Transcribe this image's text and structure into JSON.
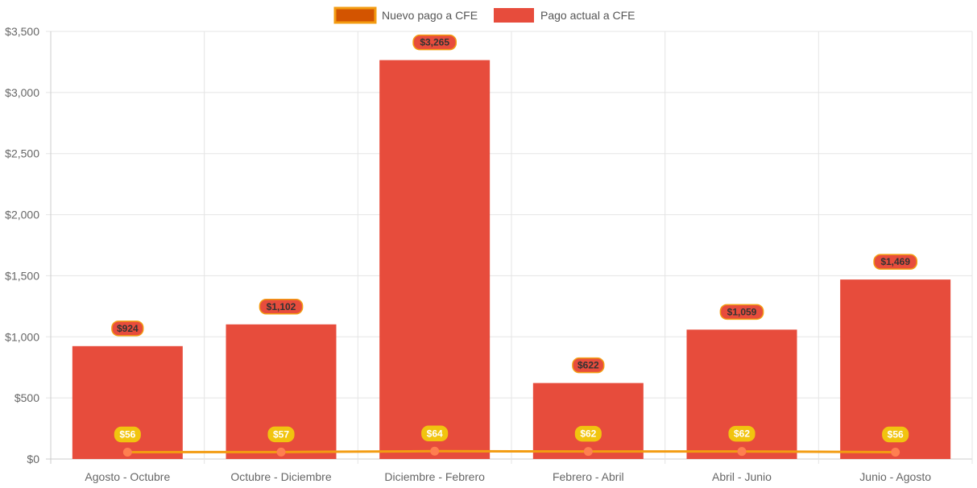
{
  "colors": {
    "bar_fill": "#e74c3c",
    "line_stroke": "#f39c12",
    "line_point": "#ff7f50",
    "legend_line_fill": "#d35400",
    "grid": "#e5e5e5",
    "axis": "#cccccc",
    "bar_label_bg": "#e74c3c",
    "bar_label_border": "#f39c12",
    "bar_label_text": "#333333",
    "line_label_bg": "#f1c40f",
    "line_label_text": "#ffffff"
  },
  "chart_data": {
    "type": "bar",
    "categories": [
      "Agosto - Octubre",
      "Octubre - Diciembre",
      "Diciembre - Febrero",
      "Febrero - Abril",
      "Abril - Junio",
      "Junio - Agosto"
    ],
    "series": [
      {
        "name": "Nuevo pago a CFE",
        "type": "line",
        "values": [
          56,
          57,
          64,
          62,
          62,
          56
        ],
        "labels": [
          "$56",
          "$57",
          "$64",
          "$62",
          "$62",
          "$56"
        ]
      },
      {
        "name": "Pago actual a CFE",
        "type": "bar",
        "values": [
          924,
          1102,
          3265,
          622,
          1059,
          1469
        ],
        "labels": [
          "$924",
          "$1,102",
          "$3,265",
          "$622",
          "$1,059",
          "$1,469"
        ]
      }
    ],
    "ylim": [
      0,
      3500
    ],
    "yticks": [
      0,
      500,
      1000,
      1500,
      2000,
      2500,
      3000,
      3500
    ],
    "ytick_labels": [
      "$0",
      "$500",
      "$1,000",
      "$1,500",
      "$2,000",
      "$2,500",
      "$3,000",
      "$3,500"
    ],
    "grid": true,
    "legend_position": "top-center"
  }
}
